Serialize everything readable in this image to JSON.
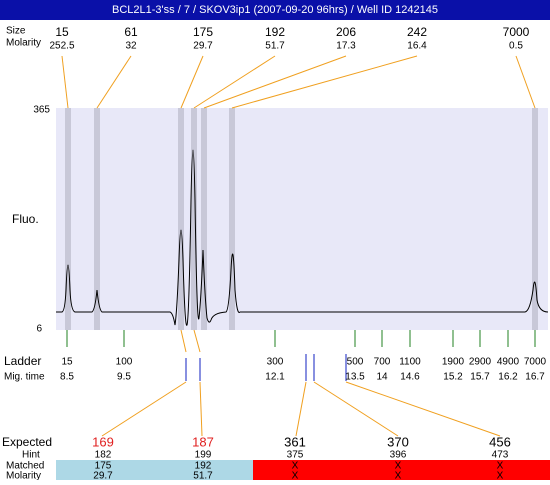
{
  "header": {
    "title": "BCL2L1-3'ss / 7 / SKOV3ip1 (2007-09-20 96hrs) / Well ID 1242145"
  },
  "peaks": {
    "size_label": "Size",
    "molarity_label": "Molarity",
    "items": [
      {
        "size": "15",
        "molarity": "252.5"
      },
      {
        "size": "61",
        "molarity": "32"
      },
      {
        "size": "175",
        "molarity": "29.7"
      },
      {
        "size": "192",
        "molarity": "51.7"
      },
      {
        "size": "206",
        "molarity": "17.3"
      },
      {
        "size": "242",
        "molarity": "16.4"
      },
      {
        "size": "7000",
        "molarity": "0.5"
      }
    ]
  },
  "plot": {
    "y_label": "Fluo.",
    "y_max": "365",
    "y_min": "6"
  },
  "ladder": {
    "label": "Ladder",
    "mig_label": "Mig. time",
    "items": [
      {
        "size": "15",
        "mig": "8.5"
      },
      {
        "size": "100",
        "mig": "9.5"
      },
      {
        "size": "300",
        "mig": "12.1"
      },
      {
        "size": "500",
        "mig": "13.5"
      },
      {
        "size": "700",
        "mig": "14"
      },
      {
        "size": "1100",
        "mig": "14.6"
      },
      {
        "size": "1900",
        "mig": "15.2"
      },
      {
        "size": "2900",
        "mig": "15.7"
      },
      {
        "size": "4900",
        "mig": "16.2"
      },
      {
        "size": "7000",
        "mig": "16.7"
      }
    ]
  },
  "table": {
    "expected_label": "Expected",
    "hint_label": "Hint",
    "matched_label": "Matched",
    "molarity_label": "Molarity",
    "columns": [
      {
        "expected": "169",
        "hint": "182",
        "matched": "175",
        "molarity": "29.7"
      },
      {
        "expected": "187",
        "hint": "199",
        "matched": "192",
        "molarity": "51.7"
      },
      {
        "expected": "361",
        "hint": "375",
        "matched": "X",
        "molarity": "X"
      },
      {
        "expected": "370",
        "hint": "396",
        "matched": "X",
        "molarity": "X"
      },
      {
        "expected": "456",
        "hint": "473",
        "matched": "X",
        "molarity": "X"
      }
    ]
  }
}
